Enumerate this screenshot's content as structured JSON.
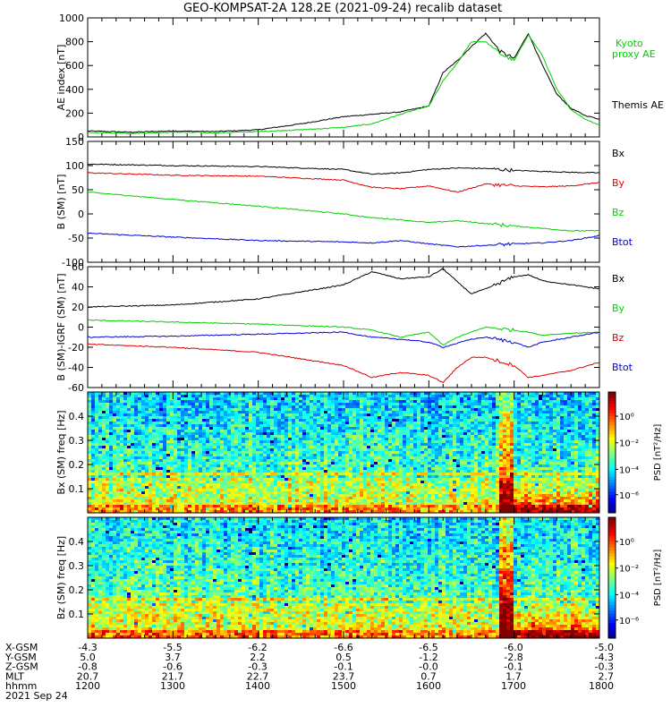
{
  "title": "GEO-KOMPSAT-2A 128.2E (2021-09-24) recalib dataset",
  "colors": {
    "black": "#000000",
    "red": "#e00000",
    "green": "#00d000",
    "blue": "#0000dd"
  },
  "chart_data": [
    {
      "id": "ae",
      "type": "line",
      "ylabel": "AE index [nT]",
      "ylim": [
        0,
        1000
      ],
      "yticks": [
        0,
        200,
        400,
        600,
        800,
        1000
      ],
      "x_hhmm": [
        "1200",
        "1230",
        "1300",
        "1330",
        "1400",
        "1430",
        "1500",
        "1520",
        "1540",
        "1600",
        "1610",
        "1620",
        "1630",
        "1640",
        "1650",
        "1700",
        "1710",
        "1720",
        "1730",
        "1740",
        "1750",
        "1800"
      ],
      "series": [
        {
          "name": "Themis AE",
          "color": "#000000",
          "values": [
            50,
            40,
            50,
            45,
            60,
            110,
            170,
            190,
            210,
            260,
            540,
            640,
            760,
            870,
            720,
            660,
            870,
            600,
            360,
            240,
            180,
            150
          ]
        },
        {
          "name": "Kyoto proxy AE",
          "color": "#00d000",
          "values": [
            40,
            30,
            40,
            35,
            45,
            60,
            80,
            110,
            190,
            260,
            470,
            620,
            800,
            800,
            700,
            640,
            860,
            680,
            400,
            230,
            150,
            100
          ]
        }
      ]
    },
    {
      "id": "bsm",
      "type": "line",
      "ylabel": "B (SM) [nT]",
      "ylim": [
        -100,
        150
      ],
      "yticks": [
        -100,
        -50,
        0,
        50,
        100,
        150
      ],
      "x_hhmm": [
        "1200",
        "1300",
        "1400",
        "1500",
        "1520",
        "1540",
        "1600",
        "1620",
        "1640",
        "1700",
        "1720",
        "1740",
        "1800"
      ],
      "series": [
        {
          "name": "Bx",
          "color": "#000000",
          "values": [
            103,
            100,
            98,
            92,
            82,
            85,
            92,
            95,
            94,
            90,
            88,
            86,
            85
          ]
        },
        {
          "name": "By",
          "color": "#e00000",
          "values": [
            85,
            80,
            78,
            70,
            55,
            52,
            58,
            45,
            62,
            58,
            56,
            58,
            65
          ]
        },
        {
          "name": "Bz",
          "color": "#00d000",
          "values": [
            45,
            30,
            16,
            0,
            -8,
            -12,
            -18,
            -14,
            -20,
            -25,
            -30,
            -35,
            -35
          ]
        },
        {
          "name": "Btot",
          "color": "#0000dd",
          "values": [
            -40,
            -48,
            -55,
            -58,
            -60,
            -55,
            -62,
            -68,
            -65,
            -62,
            -60,
            -55,
            -45
          ]
        }
      ]
    },
    {
      "id": "bres",
      "type": "line",
      "ylabel": "B (SM)-IGRF (SM) [nT]",
      "ylim": [
        -60,
        60
      ],
      "yticks": [
        -60,
        -40,
        -20,
        0,
        20,
        40,
        60
      ],
      "x_hhmm": [
        "1200",
        "1300",
        "1400",
        "1500",
        "1520",
        "1540",
        "1600",
        "1610",
        "1620",
        "1630",
        "1640",
        "1700",
        "1710",
        "1720",
        "1740",
        "1800"
      ],
      "series": [
        {
          "name": "Bx",
          "color": "#000000",
          "values": [
            20,
            22,
            28,
            42,
            55,
            48,
            50,
            58,
            45,
            33,
            38,
            50,
            52,
            46,
            42,
            38
          ]
        },
        {
          "name": "By",
          "color": "#00d000",
          "values": [
            7,
            5,
            3,
            0,
            -3,
            -10,
            -5,
            -18,
            -10,
            -5,
            0,
            -3,
            -5,
            -8,
            -6,
            -5
          ]
        },
        {
          "name": "Bz",
          "color": "#e00000",
          "values": [
            -17,
            -20,
            -25,
            -38,
            -50,
            -45,
            -48,
            -55,
            -40,
            -30,
            -30,
            -38,
            -50,
            -48,
            -43,
            -35
          ]
        },
        {
          "name": "Btot",
          "color": "#0000dd",
          "values": [
            -10,
            -9,
            -7,
            -5,
            -10,
            -12,
            -15,
            -20,
            -16,
            -12,
            -10,
            -15,
            -20,
            -15,
            -10,
            -5
          ]
        }
      ]
    },
    {
      "id": "bx_spec",
      "type": "heatmap",
      "ylabel": "Bx (SM) freq [Hz]",
      "ylim": [
        0,
        0.5
      ],
      "yticks": [
        0.1,
        0.2,
        0.3,
        0.4
      ],
      "colorbar_label": "PSD [nT²/Hz]",
      "colorbar_ticks": [
        "10⁰",
        "10⁻²",
        "10⁻⁴",
        "10⁻⁶"
      ]
    },
    {
      "id": "bz_spec",
      "type": "heatmap",
      "ylabel": "Bz (SM) freq [Hz]",
      "ylim": [
        0,
        0.5
      ],
      "yticks": [
        0.1,
        0.2,
        0.3,
        0.4
      ],
      "colorbar_label": "PSD [nT²/Hz]",
      "colorbar_ticks": [
        "10⁰",
        "10⁻²",
        "10⁻⁴",
        "10⁻⁶"
      ]
    }
  ],
  "xaxis": {
    "rows": [
      {
        "label": "X-GSM",
        "values": [
          "-4.3",
          "-5.5",
          "-6.2",
          "-6.6",
          "-6.5",
          "-6.0",
          "-5.0"
        ]
      },
      {
        "label": "Y-GSM",
        "values": [
          "5.0",
          "3.7",
          "2.2",
          "0.5",
          "-1.2",
          "-2.8",
          "-4.3"
        ]
      },
      {
        "label": "Z-GSM",
        "values": [
          "-0.8",
          "-0.6",
          "-0.3",
          "-0.1",
          "-0.0",
          "-0.1",
          "-0.3"
        ]
      },
      {
        "label": "MLT",
        "values": [
          "20.7",
          "21.7",
          "22.7",
          "23.7",
          "0.7",
          "1.7",
          "2.7"
        ]
      },
      {
        "label": "hhmm",
        "values": [
          "1200",
          "1300",
          "1400",
          "1500",
          "1600",
          "1700",
          "1800"
        ]
      }
    ],
    "date": "2021 Sep 24"
  }
}
